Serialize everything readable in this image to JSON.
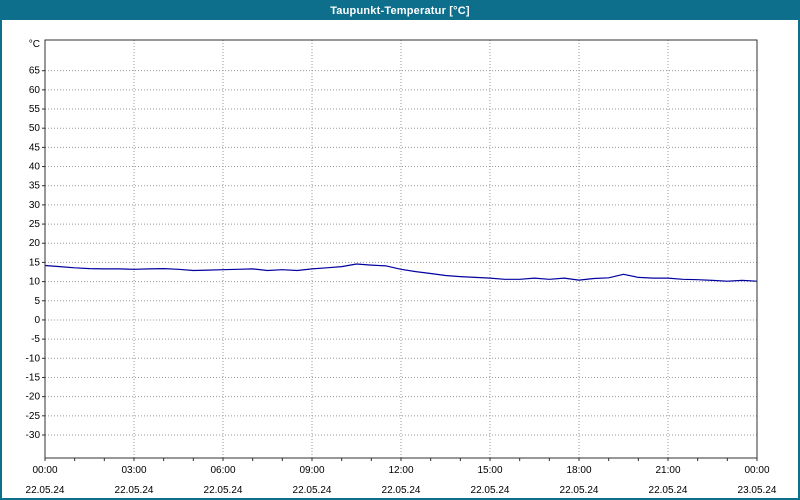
{
  "window": {
    "title": "Taupunkt-Temperatur [°C]"
  },
  "colors": {
    "titlebar": "#0d6f8c",
    "frame_border": "#0d6f8c",
    "plot_border": "#303030",
    "grid": "#9a9a9a",
    "line": "#0000a0",
    "label_text": "#000000"
  },
  "chart_data": {
    "type": "line",
    "title": "Taupunkt-Temperatur [°C]",
    "ylabel": "°C",
    "xlabel": "",
    "grid": true,
    "legend": "none",
    "ylim": [
      -36,
      73
    ],
    "y_ticks": {
      "min": -30,
      "max": 65,
      "step": 5
    },
    "x_hours_range": [
      0,
      24
    ],
    "x_axis": {
      "times": [
        "00:00",
        "03:00",
        "06:00",
        "09:00",
        "12:00",
        "15:00",
        "18:00",
        "21:00",
        "00:00"
      ],
      "dates": [
        "22.05.24",
        "22.05.24",
        "22.05.24",
        "22.05.24",
        "22.05.24",
        "22.05.24",
        "22.05.24",
        "22.05.24",
        "23.05.24"
      ]
    },
    "x": [
      0,
      0.5,
      1,
      1.5,
      2,
      2.5,
      3,
      3.5,
      4,
      4.5,
      5,
      5.5,
      6,
      6.5,
      7,
      7.5,
      8,
      8.5,
      9,
      9.5,
      10,
      10.5,
      11,
      11.5,
      12,
      12.5,
      13,
      13.5,
      14,
      14.5,
      15,
      15.5,
      16,
      16.5,
      17,
      17.5,
      18,
      18.5,
      19,
      19.5,
      20,
      20.5,
      21,
      21.5,
      22,
      22.5,
      23,
      23.5,
      24
    ],
    "values": [
      14.2,
      13.9,
      13.6,
      13.4,
      13.3,
      13.3,
      13.2,
      13.3,
      13.4,
      13.2,
      12.9,
      13.0,
      13.1,
      13.2,
      13.3,
      12.9,
      13.1,
      12.9,
      13.3,
      13.6,
      13.9,
      14.6,
      14.3,
      14.1,
      13.2,
      12.6,
      12.1,
      11.6,
      11.3,
      11.1,
      10.9,
      10.6,
      10.6,
      10.9,
      10.6,
      10.9,
      10.4,
      10.8,
      11.0,
      11.9,
      11.1,
      10.9,
      10.9,
      10.6,
      10.5,
      10.3,
      10.1,
      10.3,
      10.1
    ]
  }
}
